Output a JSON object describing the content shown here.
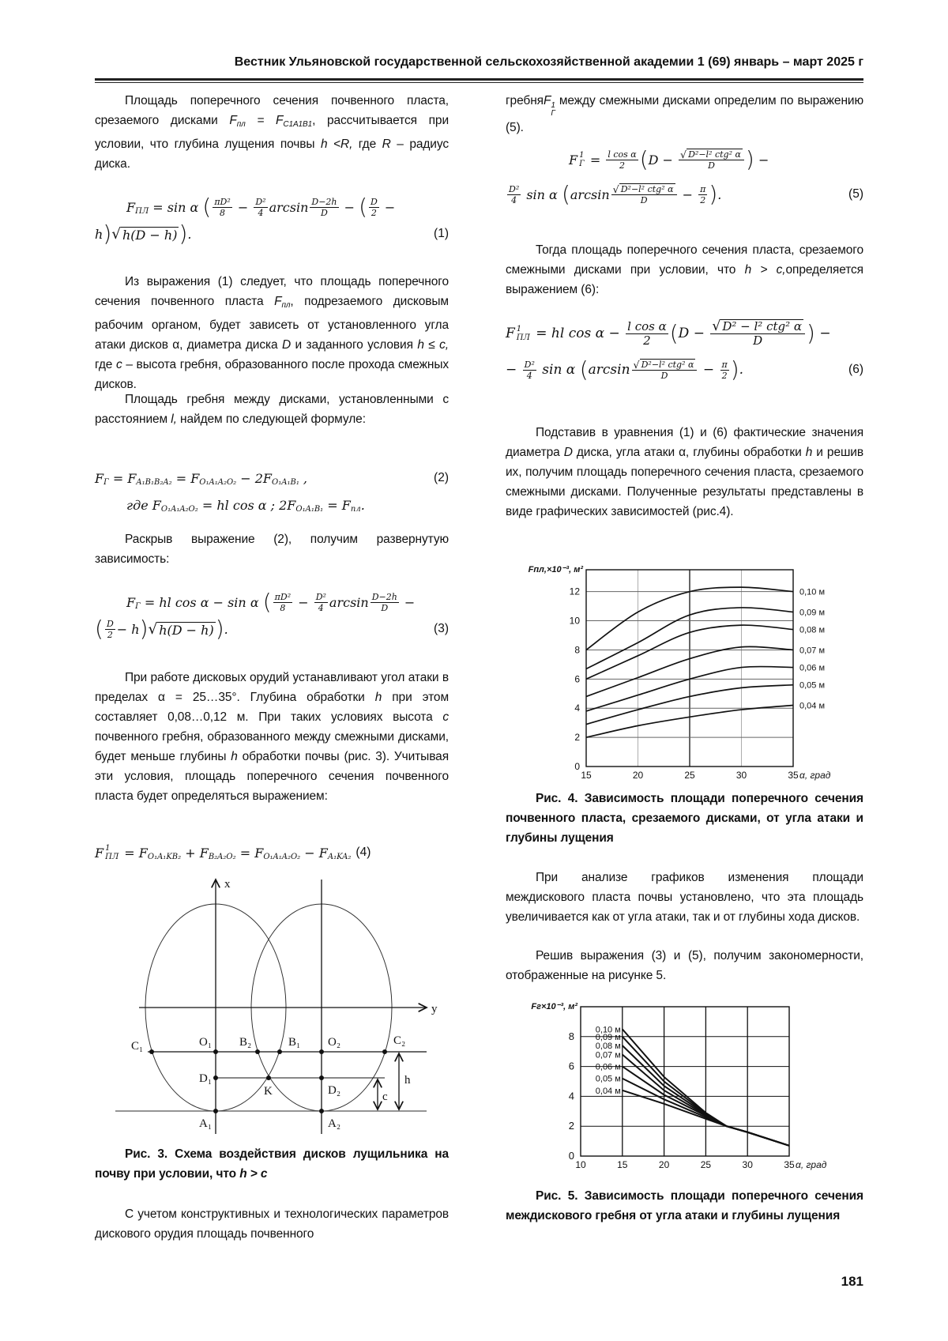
{
  "header": {
    "journal": "Вестник Ульяновской государственной сельскохозяйственной академии 1 (69) январь – март 2025 г"
  },
  "left": {
    "p1": [
      "Площадь поперечного сечения почвенного пласта, срезаемого дисками ",
      {
        "i": "F"
      },
      {
        "sub": "пл"
      },
      {
        "i": " = F"
      },
      {
        "sub": "C1A1B1"
      },
      ", рассчитывается при условии, что глубина лущения почвы ",
      {
        "i": "h <R,"
      },
      " где ",
      {
        "i": "R"
      },
      " – радиус диска."
    ],
    "p2": [
      "Из выражения (1) следует, что площадь поперечного сечения почвенного пласта ",
      {
        "i": "F"
      },
      {
        "sub": "пл"
      },
      ", подрезаемого дисковым рабочим органом, будет зависеть от установленного угла атаки дисков α, диаметра диска ",
      {
        "i": "D"
      },
      " и заданного условия ",
      {
        "i": "h ≤ c,"
      },
      " где ",
      {
        "i": "c"
      },
      " – высота гребня, образованного после прохода смежных дисков."
    ],
    "p3": [
      "Площадь гребня между дисками, установленными с расстоянием ",
      {
        "i": "l,"
      },
      " найдем по следующей формуле:"
    ],
    "p4": [
      "Раскрыв выражение (2), получим развернутую зависимость:"
    ],
    "p5": [
      "При работе дисковых орудий устанавливают угол атаки в пределах α = 25…35°. Глубина обработки ",
      {
        "i": "h"
      },
      " при этом составляет 0,08…0,12 м. При таких условиях высота ",
      {
        "i": "c"
      },
      " почвенного гребня, образованного между смежными дисками, будет меньше глубины ",
      {
        "i": "h"
      },
      " обработки почвы (рис. 3). Учитывая эти условия, площадь поперечного сечения почвенного пласта будет определяться выражением:"
    ],
    "caption3": [
      "Рис. 3. Схема воздействия дисков лущильника на почву при условии, что ",
      {
        "i": "h > c"
      }
    ],
    "p6": [
      "С учетом конструктивных и технологических параметров дискового орудия площадь почвенного"
    ]
  },
  "right": {
    "p1": [
      "гребня",
      {
        "i": "F"
      },
      {
        "ss": [
          "1",
          "Г"
        ]
      },
      " между смежными дисками определим по выражению (5)."
    ],
    "p2": [
      "Тогда площадь поперечного сечения пласта, срезаемого смежными дисками при условии, что ",
      {
        "i": "h > c,"
      },
      "определяется выражением (6):"
    ],
    "p3": [
      "Подставив в уравнения (1) и (6) фактические значения диаметра ",
      {
        "i": "D"
      },
      " диска, угла атаки α, глубины обработки ",
      {
        "i": "h"
      },
      " и решив их, получим площадь поперечного сечения пласта, срезаемого смежными дисками. Полученные результаты представлены в виде графических зависимостей (рис.4)."
    ],
    "caption4": [
      "Рис. 4. Зависимость площади поперечного сечения почвенного пласта, срезаемого дисками, от угла атаки и глубины лущения"
    ],
    "p4": [
      "При анализе графиков изменения площади междискового пласта почвы установлено, что эта площадь увеличивается как от угла атаки, так и от глубины хода дисков."
    ],
    "p5": [
      "Решив выражения (3) и (5), получим закономерности, отображенные на рисунке 5."
    ],
    "caption5": [
      "Рис. 5. Зависимость площади поперечного сечения междискового гребня от угла атаки и глубины лущения"
    ]
  },
  "formulas": {
    "f1": [
      [
        "F",
        {
          "sub": "ПЛ"
        },
        " = sin α ",
        {
          "b": "("
        },
        {
          "f": [
            "πD²",
            "8"
          ]
        },
        " − ",
        {
          "f": [
            "D²",
            "4"
          ]
        },
        "arcsin",
        {
          "f": [
            "D−2h",
            "D"
          ]
        },
        " − ",
        {
          "b": "("
        },
        {
          "f": [
            "D",
            "2"
          ]
        },
        " −"
      ],
      [
        "h",
        {
          "b": ")"
        },
        {
          "r": "h(D − h)"
        },
        {
          "b": ")"
        },
        ".",
        {
          "n": "(1)"
        }
      ]
    ],
    "f2": [
      [
        "F",
        {
          "sub": "Г"
        },
        " = F",
        {
          "sub": "A₁B₁B₂A₂"
        },
        " = F",
        {
          "sub": "O₁A₁A₂O₂"
        },
        " − 2F",
        {
          "sub": "O₁A₁B₁"
        },
        " ,",
        {
          "n": "(2)"
        }
      ],
      [
        "где F",
        {
          "sub": "O₁A₁A₂O₂"
        },
        " = hl cos α ; 2F",
        {
          "sub": "O₁A₁B₁"
        },
        " = F",
        {
          "sub": "пл"
        },
        "."
      ]
    ],
    "f3": [
      [
        "F",
        {
          "sub": "Г"
        },
        " = hl cos α − sin α ",
        {
          "b": "("
        },
        {
          "f": [
            "πD²",
            "8"
          ]
        },
        " − ",
        {
          "f": [
            "D²",
            "4"
          ]
        },
        "arcsin",
        {
          "f": [
            "D−2h",
            "D"
          ]
        },
        " −"
      ],
      [
        {
          "b": "("
        },
        {
          "f": [
            "D",
            "2"
          ]
        },
        "− h",
        {
          "b": ")"
        },
        {
          "r": "h(D − h)"
        },
        {
          "b": ")"
        },
        ".",
        {
          "n": "(3)"
        }
      ]
    ],
    "f4": [
      [
        "F",
        {
          "ss": [
            "1",
            "ПЛ"
          ]
        },
        " = F",
        {
          "sub": "O₁A₁KB₂"
        },
        " + F",
        {
          "sub": "B₂A₂O₂"
        },
        " = F",
        {
          "sub": "O₁A₁A₂O₂"
        },
        " − F",
        {
          "sub": "A₁KA₂"
        },
        {
          "ni": "(4)"
        }
      ]
    ],
    "f5": [
      [
        "F",
        {
          "ss": [
            "1",
            "Г"
          ]
        },
        " = ",
        {
          "f": [
            "l cos α",
            "2"
          ]
        },
        {
          "b": "("
        },
        "D − ",
        {
          "f": [
            {
              "r": "D²−l² ctg² α"
            },
            "D"
          ]
        },
        {
          "b": ")"
        },
        " −"
      ],
      [
        {
          "f": [
            "D²",
            "4"
          ]
        },
        " sin α ",
        {
          "b": "("
        },
        "arcsin",
        {
          "f": [
            {
              "r": "D²−l² ctg² α"
            },
            "D"
          ]
        },
        " − ",
        {
          "f": [
            "π",
            "2"
          ]
        },
        {
          "b": ")"
        },
        ".",
        {
          "n": "(5)"
        }
      ]
    ],
    "f6": [
      [
        "F",
        {
          "ss": [
            "1",
            "ПЛ"
          ]
        },
        " = hl cos α − ",
        {
          "f": [
            "l cos α",
            "2"
          ]
        },
        {
          "b": "("
        },
        "D − ",
        {
          "f": [
            {
              "r": "D² − l² ctg² α"
            },
            "D"
          ]
        },
        {
          "b": ")"
        },
        " −"
      ],
      [
        "− ",
        {
          "f": [
            "D²",
            "4"
          ]
        },
        " sin α ",
        {
          "b": "("
        },
        "arcsin",
        {
          "f": [
            {
              "r": "D²−l² ctg² α"
            },
            "D"
          ]
        },
        " − ",
        {
          "f": [
            "π",
            "2"
          ]
        },
        {
          "b": ")"
        },
        ".",
        {
          "n": "(6)"
        }
      ]
    ]
  },
  "figure3": {
    "labels": {
      "x": "x",
      "y": "y",
      "C1": "C₁",
      "O1": "O₁",
      "B2": "B₂",
      "B1": "B₁",
      "O2": "O₂",
      "C2": "C₂",
      "D1": "D₁",
      "K": "K",
      "D2": "D₂",
      "A1": "A₁",
      "A2": "A₂",
      "c": "c",
      "h": "h"
    }
  },
  "chart_data": [
    {
      "type": "line",
      "y_label": "Fпл,×10⁻³, м²",
      "x_label": "α, град",
      "xlim": [
        15,
        35
      ],
      "ylim": [
        0,
        13.5
      ],
      "x_ticks": [
        15,
        20,
        25,
        30,
        35
      ],
      "y_ticks": [
        0,
        2,
        4,
        6,
        8,
        10,
        12
      ],
      "grid": true,
      "legend": "right",
      "x": [
        15,
        20,
        25,
        30,
        35
      ],
      "series": [
        {
          "name": "0,10 м",
          "values": [
            8.0,
            10.6,
            12.0,
            12.3,
            12.0
          ]
        },
        {
          "name": "0,09 м",
          "values": [
            6.7,
            8.5,
            10.4,
            10.9,
            10.6
          ]
        },
        {
          "name": "0,08 м",
          "values": [
            6.0,
            7.6,
            9.2,
            9.7,
            9.4
          ]
        },
        {
          "name": "0,07 м",
          "values": [
            4.8,
            6.1,
            7.4,
            8.2,
            8.0
          ]
        },
        {
          "name": "0,06 м",
          "values": [
            3.8,
            4.9,
            6.0,
            6.8,
            6.8
          ]
        },
        {
          "name": "0,05 м",
          "values": [
            2.9,
            3.9,
            4.8,
            5.4,
            5.6
          ]
        },
        {
          "name": "0,04 м",
          "values": [
            2.0,
            2.8,
            3.4,
            3.9,
            4.2
          ]
        }
      ]
    },
    {
      "type": "line",
      "y_label": "Fг×10⁻³, м²",
      "x_label": "α, град",
      "xlim": [
        10,
        35
      ],
      "ylim": [
        0,
        10
      ],
      "x_ticks": [
        10,
        15,
        20,
        25,
        30,
        35
      ],
      "y_ticks": [
        0,
        2,
        4,
        6,
        8
      ],
      "grid": true,
      "legend": "left",
      "x": [
        15,
        20,
        25,
        27.5,
        30,
        35
      ],
      "series": [
        {
          "name": "0,10 м",
          "values": [
            8.5,
            5.3,
            2.9,
            2.0,
            1.6,
            0.7
          ]
        },
        {
          "name": "0,09 м",
          "values": [
            8.0,
            5.0,
            2.85,
            2.0,
            1.6,
            0.7
          ]
        },
        {
          "name": "0,08 м",
          "values": [
            7.4,
            4.7,
            2.8,
            2.0,
            1.6,
            0.7
          ]
        },
        {
          "name": "0,07 м",
          "values": [
            6.8,
            4.4,
            2.75,
            2.0,
            1.6,
            0.7
          ]
        },
        {
          "name": "0,06 м",
          "values": [
            6.0,
            4.1,
            2.7,
            2.0,
            1.6,
            0.7
          ]
        },
        {
          "name": "0,05 м",
          "values": [
            5.2,
            3.8,
            2.6,
            2.0,
            1.6,
            0.7
          ]
        },
        {
          "name": "0,04 м",
          "values": [
            4.4,
            3.5,
            2.5,
            2.0,
            1.6,
            0.7
          ]
        }
      ]
    }
  ],
  "page_number": "181"
}
